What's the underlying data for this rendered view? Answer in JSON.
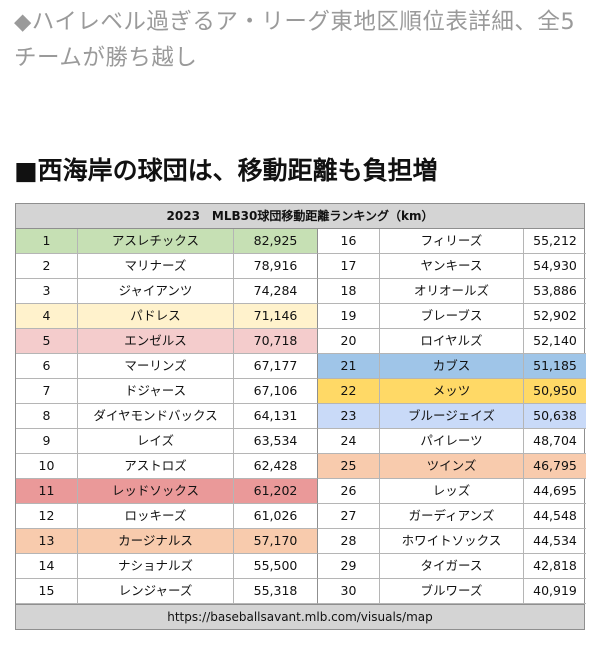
{
  "headline": "◆ハイレベル過ぎるア・リーグ東地区順位表詳細、全5チームが勝ち越し",
  "section_title": "■西海岸の球団は、移動距離も負担増",
  "table": {
    "title": "2023　MLB30球団移動距離ランキング（km）",
    "source": "https://baseballsavant.mlb.com/visuals/map",
    "colors": {
      "green": "#c6e0b4",
      "yellow_light": "#fff2cc",
      "pink": "#f4cccc",
      "red": "#ea9999",
      "orange": "#f8cbad",
      "blue_mid": "#9fc5e8",
      "yellow": "#ffd966",
      "blue_light": "#c9daf8"
    },
    "left": [
      {
        "rank": "1",
        "team": "アスレチックス",
        "distance": "82,925",
        "color": "green"
      },
      {
        "rank": "2",
        "team": "マリナーズ",
        "distance": "78,916",
        "color": ""
      },
      {
        "rank": "3",
        "team": "ジャイアンツ",
        "distance": "74,284",
        "color": ""
      },
      {
        "rank": "4",
        "team": "パドレス",
        "distance": "71,146",
        "color": "yellow_light"
      },
      {
        "rank": "5",
        "team": "エンゼルス",
        "distance": "70,718",
        "color": "pink"
      },
      {
        "rank": "6",
        "team": "マーリンズ",
        "distance": "67,177",
        "color": ""
      },
      {
        "rank": "7",
        "team": "ドジャース",
        "distance": "67,106",
        "color": ""
      },
      {
        "rank": "8",
        "team": "ダイヤモンドバックス",
        "distance": "64,131",
        "color": ""
      },
      {
        "rank": "9",
        "team": "レイズ",
        "distance": "63,534",
        "color": ""
      },
      {
        "rank": "10",
        "team": "アストロズ",
        "distance": "62,428",
        "color": ""
      },
      {
        "rank": "11",
        "team": "レッドソックス",
        "distance": "61,202",
        "color": "red"
      },
      {
        "rank": "12",
        "team": "ロッキーズ",
        "distance": "61,026",
        "color": ""
      },
      {
        "rank": "13",
        "team": "カージナルス",
        "distance": "57,170",
        "color": "orange"
      },
      {
        "rank": "14",
        "team": "ナショナルズ",
        "distance": "55,500",
        "color": ""
      },
      {
        "rank": "15",
        "team": "レンジャーズ",
        "distance": "55,318",
        "color": ""
      }
    ],
    "right": [
      {
        "rank": "16",
        "team": "フィリーズ",
        "distance": "55,212",
        "color": ""
      },
      {
        "rank": "17",
        "team": "ヤンキース",
        "distance": "54,930",
        "color": ""
      },
      {
        "rank": "18",
        "team": "オリオールズ",
        "distance": "53,886",
        "color": ""
      },
      {
        "rank": "19",
        "team": "ブレーブス",
        "distance": "52,902",
        "color": ""
      },
      {
        "rank": "20",
        "team": "ロイヤルズ",
        "distance": "52,140",
        "color": ""
      },
      {
        "rank": "21",
        "team": "カブス",
        "distance": "51,185",
        "color": "blue_mid"
      },
      {
        "rank": "22",
        "team": "メッツ",
        "distance": "50,950",
        "color": "yellow"
      },
      {
        "rank": "23",
        "team": "ブルージェイズ",
        "distance": "50,638",
        "color": "blue_light"
      },
      {
        "rank": "24",
        "team": "パイレーツ",
        "distance": "48,704",
        "color": ""
      },
      {
        "rank": "25",
        "team": "ツインズ",
        "distance": "46,795",
        "color": "orange"
      },
      {
        "rank": "26",
        "team": "レッズ",
        "distance": "44,695",
        "color": ""
      },
      {
        "rank": "27",
        "team": "ガーディアンズ",
        "distance": "44,548",
        "color": ""
      },
      {
        "rank": "28",
        "team": "ホワイトソックス",
        "distance": "44,534",
        "color": ""
      },
      {
        "rank": "29",
        "team": "タイガース",
        "distance": "42,818",
        "color": ""
      },
      {
        "rank": "30",
        "team": "ブルワーズ",
        "distance": "40,919",
        "color": ""
      }
    ]
  }
}
